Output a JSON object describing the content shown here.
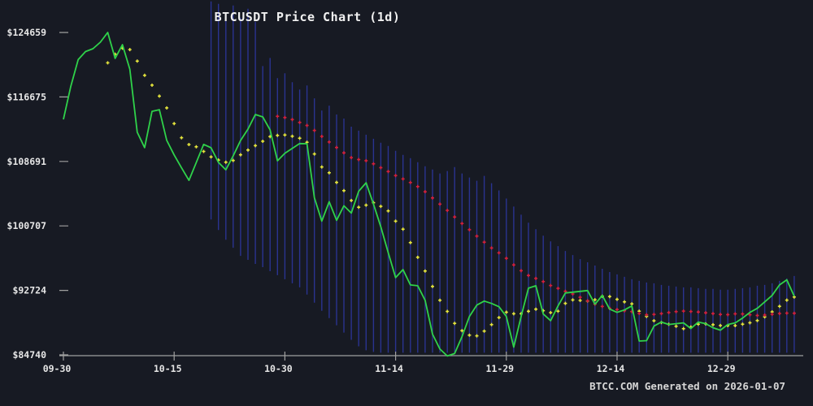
{
  "chart_data": {
    "type": "line",
    "title": "BTCUSDT Price Chart (1d)",
    "watermark": "BTCC.COM Generated on 2026-01-07",
    "xlabel": "",
    "ylabel": "",
    "grid": false,
    "legend": "none",
    "start_date": "2025-09-30",
    "end_date": "2026-01-07",
    "x_tick_labels": [
      "09-30",
      "10-15",
      "10-30",
      "11-14",
      "11-29",
      "12-14",
      "12-29"
    ],
    "x_tick_indices": [
      0,
      15,
      30,
      45,
      60,
      75,
      90
    ],
    "y_tick_labels": [
      "$124659",
      "$116675",
      "$108691",
      "$100707",
      "$92724",
      "$84740"
    ],
    "y_tick_values": [
      124659,
      116675,
      108691,
      100707,
      92724,
      84740
    ],
    "ylim": [
      84740,
      124659
    ],
    "colors": {
      "background": "#171a23",
      "close_line": "#2fd24a",
      "ma_fast_dots": "#e6e63c",
      "ma_slow_dots": "#d4203c",
      "range_bars": "#2a3390",
      "axis": "#a0a0a0",
      "labels": "#e6e6e6"
    },
    "series": [
      {
        "name": "close",
        "type": "line",
        "color_key": "close_line",
        "values": [
          113900,
          118000,
          121300,
          122300,
          122650,
          123450,
          124659,
          121450,
          123150,
          120100,
          112300,
          110400,
          114900,
          115100,
          111300,
          109500,
          107900,
          106350,
          108550,
          110800,
          110380,
          108570,
          107660,
          109380,
          111290,
          112690,
          114500,
          114200,
          112600,
          108770,
          109700,
          110300,
          110900,
          110880,
          104200,
          101300,
          103700,
          101400,
          103200,
          102300,
          105000,
          106050,
          103400,
          100600,
          97400,
          94300,
          95300,
          93400,
          93300,
          91500,
          87300,
          85450,
          84600,
          84900,
          87000,
          89500,
          90900,
          91400,
          91100,
          90700,
          89500,
          85700,
          89500,
          93000,
          93300,
          89800,
          88970,
          90800,
          92400,
          92500,
          92600,
          92700,
          91000,
          92100,
          90400,
          90000,
          90300,
          90800,
          86450,
          86500,
          88300,
          88800,
          88500,
          88600,
          88700,
          88000,
          88800,
          88600,
          88100,
          87800,
          88500,
          88700,
          89300,
          90000,
          90500,
          91300,
          92100,
          93400,
          94030,
          92000
        ]
      },
      {
        "name": "MA7",
        "type": "sma_dots",
        "window": 7,
        "color_key": "ma_fast_dots"
      },
      {
        "name": "MA30",
        "type": "sma_dots",
        "window": 30,
        "color_key": "ma_slow_dots"
      },
      {
        "name": "daily-range-bars",
        "type": "vertical_bars",
        "color_key": "range_bars",
        "top": [
          null,
          null,
          null,
          null,
          null,
          null,
          null,
          null,
          null,
          null,
          null,
          null,
          null,
          null,
          null,
          null,
          null,
          null,
          null,
          null,
          128500,
          128200,
          127000,
          128000,
          126500,
          127600,
          126000,
          120500,
          121500,
          119000,
          119600,
          118500,
          117600,
          118100,
          116500,
          115000,
          115600,
          114500,
          114000,
          113000,
          112500,
          112000,
          111500,
          111000,
          110600,
          110000,
          109500,
          109100,
          108600,
          108100,
          107700,
          107200,
          107500,
          108000,
          107200,
          106700,
          106300,
          106900,
          106000,
          105100,
          104100,
          103100,
          102100,
          101100,
          100300,
          99500,
          98800,
          98200,
          97600,
          97100,
          96600,
          96200,
          95800,
          95400,
          95000,
          94700,
          94400,
          94100,
          93900,
          93700,
          93600,
          93400,
          93300,
          93200,
          93100,
          93100,
          93000,
          92900,
          92900,
          92800,
          92800,
          92900,
          93000,
          93100,
          93300,
          93400,
          93600,
          93900,
          94200,
          94500
        ],
        "bottom": [
          null,
          null,
          null,
          null,
          null,
          null,
          null,
          null,
          null,
          null,
          null,
          null,
          null,
          null,
          null,
          null,
          null,
          null,
          null,
          null,
          101500,
          100200,
          99000,
          98000,
          97000,
          96500,
          96000,
          95600,
          95100,
          94600,
          94100,
          93600,
          93100,
          92200,
          91200,
          90200,
          89300,
          88400,
          87500,
          86600,
          85800,
          85300,
          85100,
          85000,
          85000,
          85000,
          85000,
          85000,
          85000,
          85000,
          85000,
          85000,
          85000,
          85000,
          85000,
          85000,
          85000,
          85000,
          85000,
          85000,
          85000,
          85000,
          85000,
          85000,
          85000,
          85000,
          85000,
          85000,
          85000,
          85000,
          85000,
          85000,
          85000,
          85000,
          85000,
          85000,
          85000,
          85000,
          85000,
          85000,
          85000,
          85000,
          85000,
          85000,
          85000,
          85000,
          85000,
          85000,
          85000,
          85000,
          85000,
          85000,
          85000,
          85000,
          85000,
          85000,
          85000,
          85000,
          85000,
          85000
        ]
      }
    ]
  }
}
